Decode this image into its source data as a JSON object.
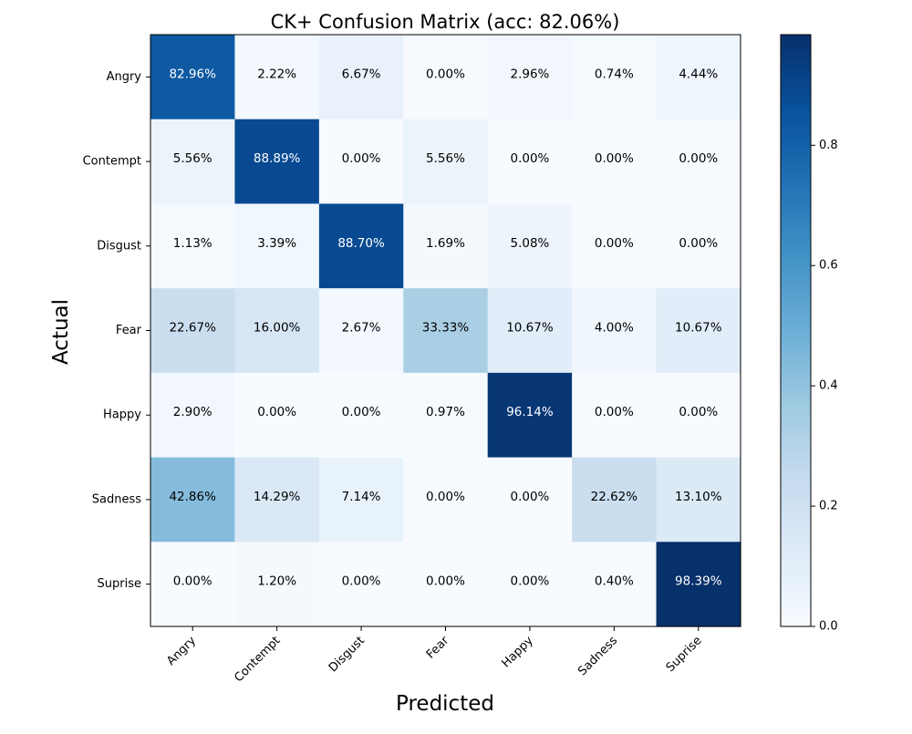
{
  "chart_data": {
    "type": "heatmap",
    "title": "CK+ Confusion Matrix (acc: 82.06%)",
    "xlabel": "Predicted",
    "ylabel": "Actual",
    "x_categories": [
      "Angry",
      "Contempt",
      "Disgust",
      "Fear",
      "Happy",
      "Sadness",
      "Suprise"
    ],
    "y_categories": [
      "Angry",
      "Contempt",
      "Disgust",
      "Fear",
      "Happy",
      "Sadness",
      "Suprise"
    ],
    "values": [
      [
        0.8296,
        0.0222,
        0.0667,
        0.0,
        0.0296,
        0.0074,
        0.0444
      ],
      [
        0.0556,
        0.8889,
        0.0,
        0.0556,
        0.0,
        0.0,
        0.0
      ],
      [
        0.0113,
        0.0339,
        0.887,
        0.0169,
        0.0508,
        0.0,
        0.0
      ],
      [
        0.2267,
        0.16,
        0.0267,
        0.3333,
        0.1067,
        0.04,
        0.1067
      ],
      [
        0.029,
        0.0,
        0.0,
        0.0097,
        0.9614,
        0.0,
        0.0
      ],
      [
        0.4286,
        0.1429,
        0.0714,
        0.0,
        0.0,
        0.2262,
        0.131
      ],
      [
        0.0,
        0.012,
        0.0,
        0.0,
        0.0,
        0.004,
        0.9839
      ]
    ],
    "cell_labels": [
      [
        "82.96%",
        "2.22%",
        "6.67%",
        "0.00%",
        "2.96%",
        "0.74%",
        "4.44%"
      ],
      [
        "5.56%",
        "88.89%",
        "0.00%",
        "5.56%",
        "0.00%",
        "0.00%",
        "0.00%"
      ],
      [
        "1.13%",
        "3.39%",
        "88.70%",
        "1.69%",
        "5.08%",
        "0.00%",
        "0.00%"
      ],
      [
        "22.67%",
        "16.00%",
        "2.67%",
        "33.33%",
        "10.67%",
        "4.00%",
        "10.67%"
      ],
      [
        "2.90%",
        "0.00%",
        "0.00%",
        "0.97%",
        "96.14%",
        "0.00%",
        "0.00%"
      ],
      [
        "42.86%",
        "14.29%",
        "7.14%",
        "0.00%",
        "0.00%",
        "22.62%",
        "13.10%"
      ],
      [
        "0.00%",
        "1.20%",
        "0.00%",
        "0.00%",
        "0.00%",
        "0.40%",
        "98.39%"
      ]
    ],
    "colormap": "Blues",
    "colormap_stops": [
      "#f7fbff",
      "#deebf7",
      "#c6dbef",
      "#9ecae1",
      "#6baed6",
      "#4292c6",
      "#2171b5",
      "#08519c",
      "#08306b"
    ],
    "vmin": 0.0,
    "vmax": 0.9839,
    "colorbar_ticks": [
      0.0,
      0.2,
      0.4,
      0.6,
      0.8
    ],
    "colorbar_tick_labels": [
      "0.0",
      "0.2",
      "0.4",
      "0.6",
      "0.8"
    ],
    "text_threshold": 0.49,
    "x_tick_rotation": 45,
    "grid": false
  }
}
